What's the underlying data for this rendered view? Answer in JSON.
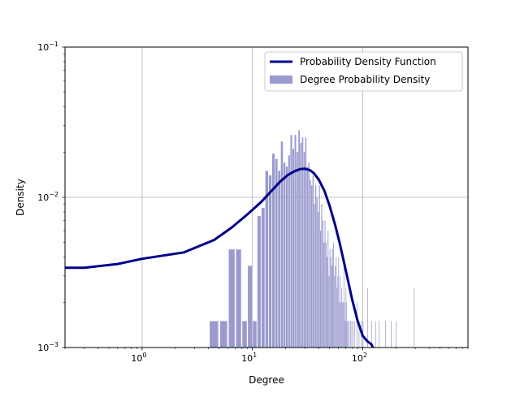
{
  "chart_data": {
    "type": "bar",
    "xlabel": "Degree",
    "ylabel": "Density",
    "xscale": "log",
    "yscale": "log",
    "xlim": [
      0.2,
      900
    ],
    "ylim": [
      0.001,
      0.1
    ],
    "grid": true,
    "legend_position": "top-right",
    "x_ticks": [
      {
        "value": 1,
        "base": "10",
        "exp": "0"
      },
      {
        "value": 10,
        "base": "10",
        "exp": "1"
      },
      {
        "value": 100,
        "base": "10",
        "exp": "2"
      }
    ],
    "y_ticks": [
      {
        "value": 0.001,
        "base": "10",
        "exp": "−3"
      },
      {
        "value": 0.01,
        "base": "10",
        "exp": "−2"
      },
      {
        "value": 0.1,
        "base": "10",
        "exp": "−1"
      }
    ],
    "legend": [
      {
        "label": "Probability Density Function",
        "kind": "line",
        "color": "#00008b"
      },
      {
        "label": "Degree Probability Density",
        "kind": "patch",
        "color": "#9a9acf"
      }
    ],
    "series": [
      {
        "name": "Degree Probability Density",
        "kind": "histogram",
        "color": "#9a9acf",
        "bin_width": 1,
        "x": [
          4,
          5,
          6,
          7,
          8,
          9,
          10,
          11,
          12,
          13,
          14,
          15,
          16,
          17,
          18,
          19,
          20,
          21,
          22,
          23,
          24,
          25,
          26,
          27,
          28,
          29,
          30,
          31,
          32,
          33,
          34,
          35,
          36,
          37,
          38,
          39,
          40,
          41,
          42,
          43,
          44,
          45,
          46,
          47,
          48,
          49,
          50,
          51,
          52,
          53,
          54,
          55,
          56,
          57,
          58,
          59,
          60,
          61,
          62,
          63,
          64,
          65,
          66,
          67,
          68,
          69,
          70,
          71,
          72,
          73,
          75,
          77,
          79,
          81,
          84,
          88,
          92,
          96,
          100,
          110,
          120,
          130,
          140,
          160,
          180,
          200,
          290
        ],
        "values": [
          0.0015,
          0.0015,
          0.0045,
          0.0045,
          0.0015,
          0.0035,
          0.0015,
          0.0075,
          0.0085,
          0.015,
          0.014,
          0.0195,
          0.018,
          0.015,
          0.0235,
          0.017,
          0.016,
          0.019,
          0.026,
          0.021,
          0.026,
          0.02,
          0.028,
          0.023,
          0.025,
          0.02,
          0.025,
          0.016,
          0.017,
          0.013,
          0.012,
          0.014,
          0.009,
          0.012,
          0.01,
          0.008,
          0.012,
          0.006,
          0.009,
          0.007,
          0.005,
          0.007,
          0.005,
          0.004,
          0.006,
          0.003,
          0.0045,
          0.004,
          0.0035,
          0.0045,
          0.005,
          0.003,
          0.0035,
          0.004,
          0.0025,
          0.003,
          0.004,
          0.002,
          0.003,
          0.002,
          0.0025,
          0.002,
          0.002,
          0.004,
          0.002,
          0.0015,
          0.0025,
          0.002,
          0.0015,
          0.0015,
          0.0015,
          0.0015,
          0.0015,
          0.0015,
          0.0015,
          0.002,
          0.0015,
          0.0015,
          0.0015,
          0.0025,
          0.0015,
          0.0015,
          0.0015,
          0.0015,
          0.0015,
          0.0015,
          0.0025
        ]
      },
      {
        "name": "Probability Density Function",
        "kind": "line",
        "color": "#00008b",
        "x": [
          0.2,
          0.3,
          0.6,
          1.0,
          2.4,
          4.5,
          6.5,
          9.0,
          12,
          15,
          18,
          21,
          24,
          27,
          30,
          33,
          36,
          40,
          45,
          50,
          56,
          62,
          70,
          80,
          90,
          100,
          110,
          120,
          125
        ],
        "values": [
          0.0034,
          0.0034,
          0.0036,
          0.0039,
          0.0043,
          0.0052,
          0.0063,
          0.0077,
          0.0093,
          0.0111,
          0.0128,
          0.0141,
          0.0149,
          0.0154,
          0.0155,
          0.0152,
          0.0145,
          0.0131,
          0.011,
          0.0088,
          0.0066,
          0.0049,
          0.0033,
          0.0021,
          0.0015,
          0.0012,
          0.0011,
          0.00105,
          0.00098
        ]
      }
    ]
  }
}
